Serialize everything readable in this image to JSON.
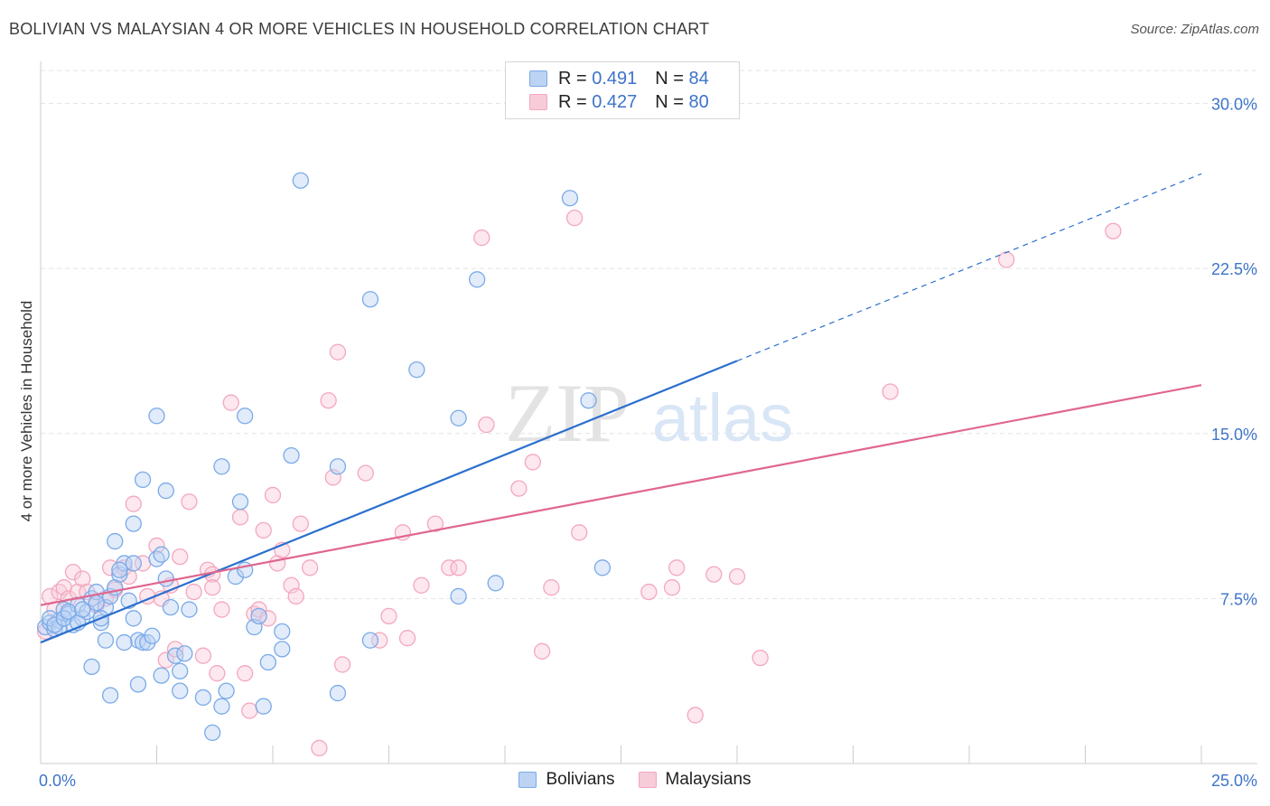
{
  "title": "BOLIVIAN VS MALAYSIAN 4 OR MORE VEHICLES IN HOUSEHOLD CORRELATION CHART",
  "source": "Source: ZipAtlas.com",
  "watermark": {
    "zip": "ZIP",
    "atlas": "atlas"
  },
  "legend": {
    "bolivians": {
      "r_label": "R =",
      "r_value": "0.491",
      "n_label": "N =",
      "n_value": "84"
    },
    "malaysians": {
      "r_label": "R =",
      "r_value": "0.427",
      "n_label": "N =",
      "n_value": "80"
    }
  },
  "chart_data": {
    "type": "scatter",
    "title": "BOLIVIAN VS MALAYSIAN 4 OR MORE VEHICLES IN HOUSEHOLD CORRELATION CHART",
    "xlabel": "",
    "ylabel": "4 or more Vehicles in Household",
    "xlim": [
      0,
      25
    ],
    "ylim": [
      0,
      31.5
    ],
    "x_tick_labels": [
      "0.0%",
      "25.0%"
    ],
    "y_ticks": [
      7.5,
      15.0,
      22.5,
      30.0
    ],
    "y_tick_labels": [
      "7.5%",
      "15.0%",
      "22.5%",
      "30.0%"
    ],
    "grid": true,
    "legend_position": "top-center",
    "colors": {
      "bolivians": "#7aaae8",
      "malaysians": "#f4a7bf",
      "blue_line": "#2a6fce",
      "pink_line": "#e0668f"
    },
    "series": [
      {
        "name": "Bolivians",
        "r": 0.491,
        "n": 84,
        "trend": {
          "x0": 0,
          "y0": 5.5,
          "x1": 15,
          "y1": 18.3,
          "dashed_to_x": 25,
          "dashed_y1": 26.8
        },
        "points": [
          [
            0.1,
            6.2
          ],
          [
            0.2,
            6.4
          ],
          [
            0.3,
            6.1
          ],
          [
            0.4,
            6.5
          ],
          [
            0.5,
            7.0
          ],
          [
            0.6,
            6.8
          ],
          [
            0.7,
            6.3
          ],
          [
            0.8,
            7.2
          ],
          [
            0.9,
            6.6
          ],
          [
            1.0,
            6.9
          ],
          [
            1.1,
            7.5
          ],
          [
            1.2,
            7.8
          ],
          [
            1.3,
            6.4
          ],
          [
            1.4,
            7.1
          ],
          [
            1.5,
            7.6
          ],
          [
            1.6,
            8.0
          ],
          [
            1.7,
            8.6
          ],
          [
            1.8,
            9.1
          ],
          [
            1.9,
            7.4
          ],
          [
            2.0,
            6.6
          ],
          [
            2.1,
            5.6
          ],
          [
            2.2,
            5.5
          ],
          [
            2.3,
            5.5
          ],
          [
            2.4,
            5.8
          ],
          [
            2.5,
            9.3
          ],
          [
            2.6,
            9.5
          ],
          [
            2.7,
            8.4
          ],
          [
            2.8,
            7.1
          ],
          [
            2.9,
            4.9
          ],
          [
            3.0,
            4.2
          ],
          [
            1.1,
            4.4
          ],
          [
            1.5,
            3.1
          ],
          [
            2.1,
            3.6
          ],
          [
            2.6,
            4.0
          ],
          [
            3.0,
            3.3
          ],
          [
            3.5,
            3.0
          ],
          [
            3.7,
            1.4
          ],
          [
            3.9,
            2.6
          ],
          [
            4.0,
            3.3
          ],
          [
            4.8,
            2.6
          ],
          [
            1.6,
            10.1
          ],
          [
            2.0,
            10.9
          ],
          [
            2.2,
            12.9
          ],
          [
            2.7,
            12.4
          ],
          [
            2.5,
            15.8
          ],
          [
            3.9,
            13.5
          ],
          [
            4.3,
            11.9
          ],
          [
            4.2,
            8.5
          ],
          [
            4.4,
            8.8
          ],
          [
            4.6,
            6.2
          ],
          [
            4.7,
            6.7
          ],
          [
            4.9,
            4.6
          ],
          [
            5.2,
            5.2
          ],
          [
            5.2,
            6.0
          ],
          [
            5.4,
            14.0
          ],
          [
            5.6,
            26.5
          ],
          [
            6.4,
            13.5
          ],
          [
            6.4,
            3.2
          ],
          [
            7.1,
            21.1
          ],
          [
            8.1,
            17.9
          ],
          [
            9.0,
            15.7
          ],
          [
            9.0,
            7.6
          ],
          [
            9.4,
            22.0
          ],
          [
            9.8,
            8.2
          ],
          [
            11.4,
            25.7
          ],
          [
            11.8,
            16.5
          ],
          [
            12.1,
            8.9
          ],
          [
            7.1,
            5.6
          ],
          [
            3.2,
            7.0
          ],
          [
            4.4,
            15.8
          ],
          [
            0.2,
            6.6
          ],
          [
            0.4,
            6.2
          ],
          [
            0.3,
            6.3
          ],
          [
            0.5,
            6.6
          ],
          [
            0.6,
            6.9
          ],
          [
            0.8,
            6.4
          ],
          [
            0.9,
            7.0
          ],
          [
            1.2,
            7.3
          ],
          [
            1.3,
            6.6
          ],
          [
            1.4,
            5.6
          ],
          [
            1.7,
            8.8
          ],
          [
            1.8,
            5.5
          ],
          [
            2.0,
            9.1
          ],
          [
            3.1,
            5.0
          ]
        ]
      },
      {
        "name": "Malaysians",
        "r": 0.427,
        "n": 80,
        "trend": {
          "x0": 0,
          "y0": 7.2,
          "x1": 25,
          "y1": 17.2
        },
        "points": [
          [
            0.1,
            6.0
          ],
          [
            0.2,
            7.6
          ],
          [
            0.3,
            7.0
          ],
          [
            0.4,
            7.8
          ],
          [
            0.5,
            8.0
          ],
          [
            0.6,
            7.5
          ],
          [
            0.7,
            8.7
          ],
          [
            0.8,
            7.8
          ],
          [
            0.9,
            8.4
          ],
          [
            1.0,
            7.8
          ],
          [
            1.2,
            7.2
          ],
          [
            1.4,
            7.5
          ],
          [
            1.5,
            8.9
          ],
          [
            1.6,
            7.9
          ],
          [
            1.8,
            8.9
          ],
          [
            1.9,
            8.5
          ],
          [
            2.0,
            11.8
          ],
          [
            2.2,
            9.1
          ],
          [
            2.3,
            7.6
          ],
          [
            2.5,
            9.9
          ],
          [
            2.6,
            7.5
          ],
          [
            2.7,
            4.7
          ],
          [
            2.8,
            8.1
          ],
          [
            3.0,
            9.4
          ],
          [
            3.2,
            11.9
          ],
          [
            3.3,
            7.8
          ],
          [
            3.5,
            4.9
          ],
          [
            3.6,
            8.8
          ],
          [
            3.7,
            8.6
          ],
          [
            3.8,
            4.1
          ],
          [
            3.9,
            7.0
          ],
          [
            4.1,
            16.4
          ],
          [
            4.3,
            11.2
          ],
          [
            4.4,
            4.1
          ],
          [
            4.5,
            2.4
          ],
          [
            4.6,
            6.8
          ],
          [
            4.7,
            7.0
          ],
          [
            4.8,
            10.6
          ],
          [
            4.9,
            6.6
          ],
          [
            5.0,
            12.2
          ],
          [
            5.1,
            9.1
          ],
          [
            5.2,
            9.7
          ],
          [
            5.4,
            8.1
          ],
          [
            5.5,
            7.6
          ],
          [
            5.6,
            10.9
          ],
          [
            5.8,
            8.9
          ],
          [
            6.0,
            0.7
          ],
          [
            6.2,
            16.5
          ],
          [
            6.3,
            13.0
          ],
          [
            6.4,
            18.7
          ],
          [
            6.5,
            4.5
          ],
          [
            7.0,
            13.2
          ],
          [
            7.3,
            5.6
          ],
          [
            7.5,
            6.7
          ],
          [
            7.8,
            10.5
          ],
          [
            7.9,
            5.7
          ],
          [
            8.2,
            8.1
          ],
          [
            8.5,
            10.9
          ],
          [
            8.8,
            8.9
          ],
          [
            9.0,
            8.9
          ],
          [
            9.5,
            23.9
          ],
          [
            9.6,
            15.4
          ],
          [
            10.3,
            12.5
          ],
          [
            10.6,
            13.7
          ],
          [
            10.8,
            5.1
          ],
          [
            11.0,
            8.0
          ],
          [
            11.5,
            24.8
          ],
          [
            11.6,
            10.5
          ],
          [
            13.1,
            7.8
          ],
          [
            13.7,
            8.9
          ],
          [
            14.1,
            2.2
          ],
          [
            14.5,
            8.6
          ],
          [
            15.5,
            4.8
          ],
          [
            15.0,
            8.5
          ],
          [
            18.3,
            16.9
          ],
          [
            20.8,
            22.9
          ],
          [
            23.1,
            24.2
          ],
          [
            13.6,
            8.0
          ],
          [
            2.9,
            5.2
          ],
          [
            3.7,
            8.0
          ]
        ]
      }
    ]
  },
  "bottom_legend": {
    "bolivians": "Bolivians",
    "malaysians": "Malaysians"
  }
}
